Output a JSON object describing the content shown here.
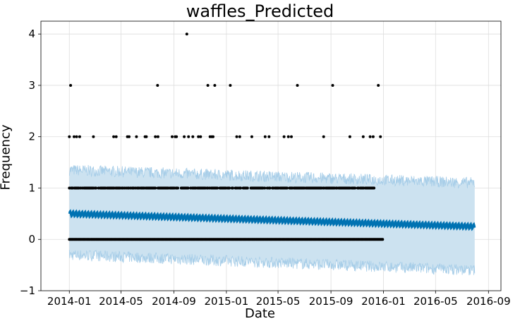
{
  "chart_data": {
    "type": "scatter",
    "title": "waffles_Predicted",
    "xlabel": "Date",
    "ylabel": "Frequency",
    "x_ticks": [
      "2014-01",
      "2014-05",
      "2014-09",
      "2015-01",
      "2015-05",
      "2015-09",
      "2016-01",
      "2016-05",
      "2016-09"
    ],
    "y_ticks": [
      -1,
      0,
      1,
      2,
      3,
      4
    ],
    "xlim": [
      "2013-10-27",
      "2016-09-30"
    ],
    "ylim": [
      -1,
      4.25
    ],
    "grid": true,
    "series": [
      {
        "role": "forecast",
        "x_range": [
          "2014-01-01",
          "2016-07-31"
        ],
        "y_start": 0.5,
        "y_end": 0.25,
        "weekly_amplitude": 0.05,
        "color": "#0072b2"
      },
      {
        "role": "uncertainty_interval",
        "x_range": [
          "2014-01-01",
          "2016-07-31"
        ],
        "upper_start": 1.35,
        "upper_end": 1.1,
        "lower_start": -0.3,
        "lower_end": -0.6,
        "color": "#a6cde8"
      },
      {
        "role": "observed",
        "color": "#000000",
        "points": [
          {
            "x": "2014-01-01",
            "y": 2
          },
          {
            "x": "2014-01-04",
            "y": 3
          },
          {
            "x": "2014-01-12",
            "y": 2
          },
          {
            "x": "2014-01-18",
            "y": 2
          },
          {
            "x": "2014-01-25",
            "y": 2
          },
          {
            "x": "2014-02-26",
            "y": 2
          },
          {
            "x": "2014-04-14",
            "y": 2
          },
          {
            "x": "2014-04-20",
            "y": 2
          },
          {
            "x": "2014-05-16",
            "y": 2
          },
          {
            "x": "2014-05-20",
            "y": 2
          },
          {
            "x": "2014-06-06",
            "y": 2
          },
          {
            "x": "2014-06-26",
            "y": 2
          },
          {
            "x": "2014-06-29",
            "y": 2
          },
          {
            "x": "2014-07-20",
            "y": 2
          },
          {
            "x": "2014-07-25",
            "y": 3
          },
          {
            "x": "2014-07-26",
            "y": 2
          },
          {
            "x": "2014-08-28",
            "y": 2
          },
          {
            "x": "2014-09-04",
            "y": 2
          },
          {
            "x": "2014-09-07",
            "y": 2
          },
          {
            "x": "2014-09-25",
            "y": 2
          },
          {
            "x": "2014-10-01",
            "y": 4
          },
          {
            "x": "2014-10-05",
            "y": 2
          },
          {
            "x": "2014-10-15",
            "y": 2
          },
          {
            "x": "2014-10-28",
            "y": 2
          },
          {
            "x": "2014-11-02",
            "y": 2
          },
          {
            "x": "2014-11-19",
            "y": 3
          },
          {
            "x": "2014-11-24",
            "y": 2
          },
          {
            "x": "2014-11-28",
            "y": 2
          },
          {
            "x": "2014-12-01",
            "y": 2
          },
          {
            "x": "2014-12-05",
            "y": 3
          },
          {
            "x": "2015-01-10",
            "y": 3
          },
          {
            "x": "2015-01-25",
            "y": 2
          },
          {
            "x": "2015-02-01",
            "y": 2
          },
          {
            "x": "2015-03-01",
            "y": 2
          },
          {
            "x": "2015-04-01",
            "y": 2
          },
          {
            "x": "2015-04-10",
            "y": 2
          },
          {
            "x": "2015-05-15",
            "y": 2
          },
          {
            "x": "2015-05-25",
            "y": 2
          },
          {
            "x": "2015-06-01",
            "y": 2
          },
          {
            "x": "2015-06-15",
            "y": 3
          },
          {
            "x": "2015-08-15",
            "y": 2
          },
          {
            "x": "2015-09-05",
            "y": 3
          },
          {
            "x": "2015-10-15",
            "y": 2
          },
          {
            "x": "2015-11-15",
            "y": 2
          },
          {
            "x": "2015-12-01",
            "y": 2
          },
          {
            "x": "2015-12-08",
            "y": 2
          },
          {
            "x": "2015-12-20",
            "y": 3
          },
          {
            "x": "2015-12-25",
            "y": 2
          }
        ],
        "ones_x_range": [
          "2014-01-01",
          "2015-12-10"
        ],
        "zeros_x_range": [
          "2014-01-01",
          "2015-12-31"
        ]
      }
    ]
  }
}
